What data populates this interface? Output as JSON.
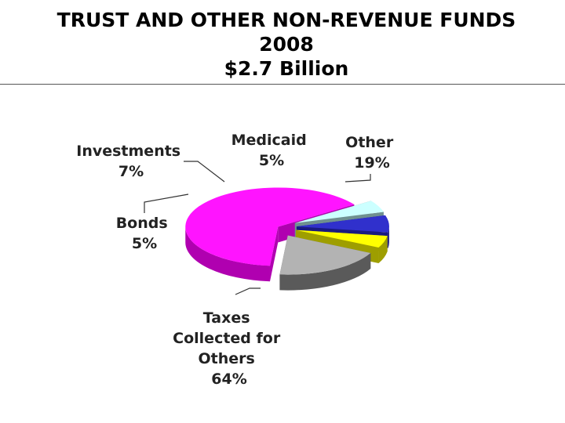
{
  "title": {
    "line1": "TRUST AND OTHER NON-REVENUE FUNDS",
    "line2": "2008",
    "line3": "$2.7 Billion"
  },
  "chart_data": {
    "type": "pie",
    "style": "3d-exploded",
    "title": "TRUST AND OTHER NON-REVENUE FUNDS 2008 $2.7 Billion",
    "total_label": "$2.7 Billion",
    "slices": [
      {
        "label": [
          "Taxes",
          "Collected for",
          "Others"
        ],
        "percent_label": "64%",
        "value": 64,
        "color": "#ff14ff",
        "side_color": "#b000b0"
      },
      {
        "label": [
          "Bonds"
        ],
        "percent_label": "5%",
        "value": 5,
        "color": "#ccffff",
        "side_color": "#6f9090"
      },
      {
        "label": [
          "Investments"
        ],
        "percent_label": "7%",
        "value": 7,
        "color": "#3030cc",
        "side_color": "#1a1a80"
      },
      {
        "label": [
          "Medicaid"
        ],
        "percent_label": "5%",
        "value": 5,
        "color": "#ffff00",
        "side_color": "#9e9e00"
      },
      {
        "label": [
          "Other"
        ],
        "percent_label": "19%",
        "value": 19,
        "color": "#b3b3b3",
        "side_color": "#5a5a5a"
      }
    ]
  }
}
